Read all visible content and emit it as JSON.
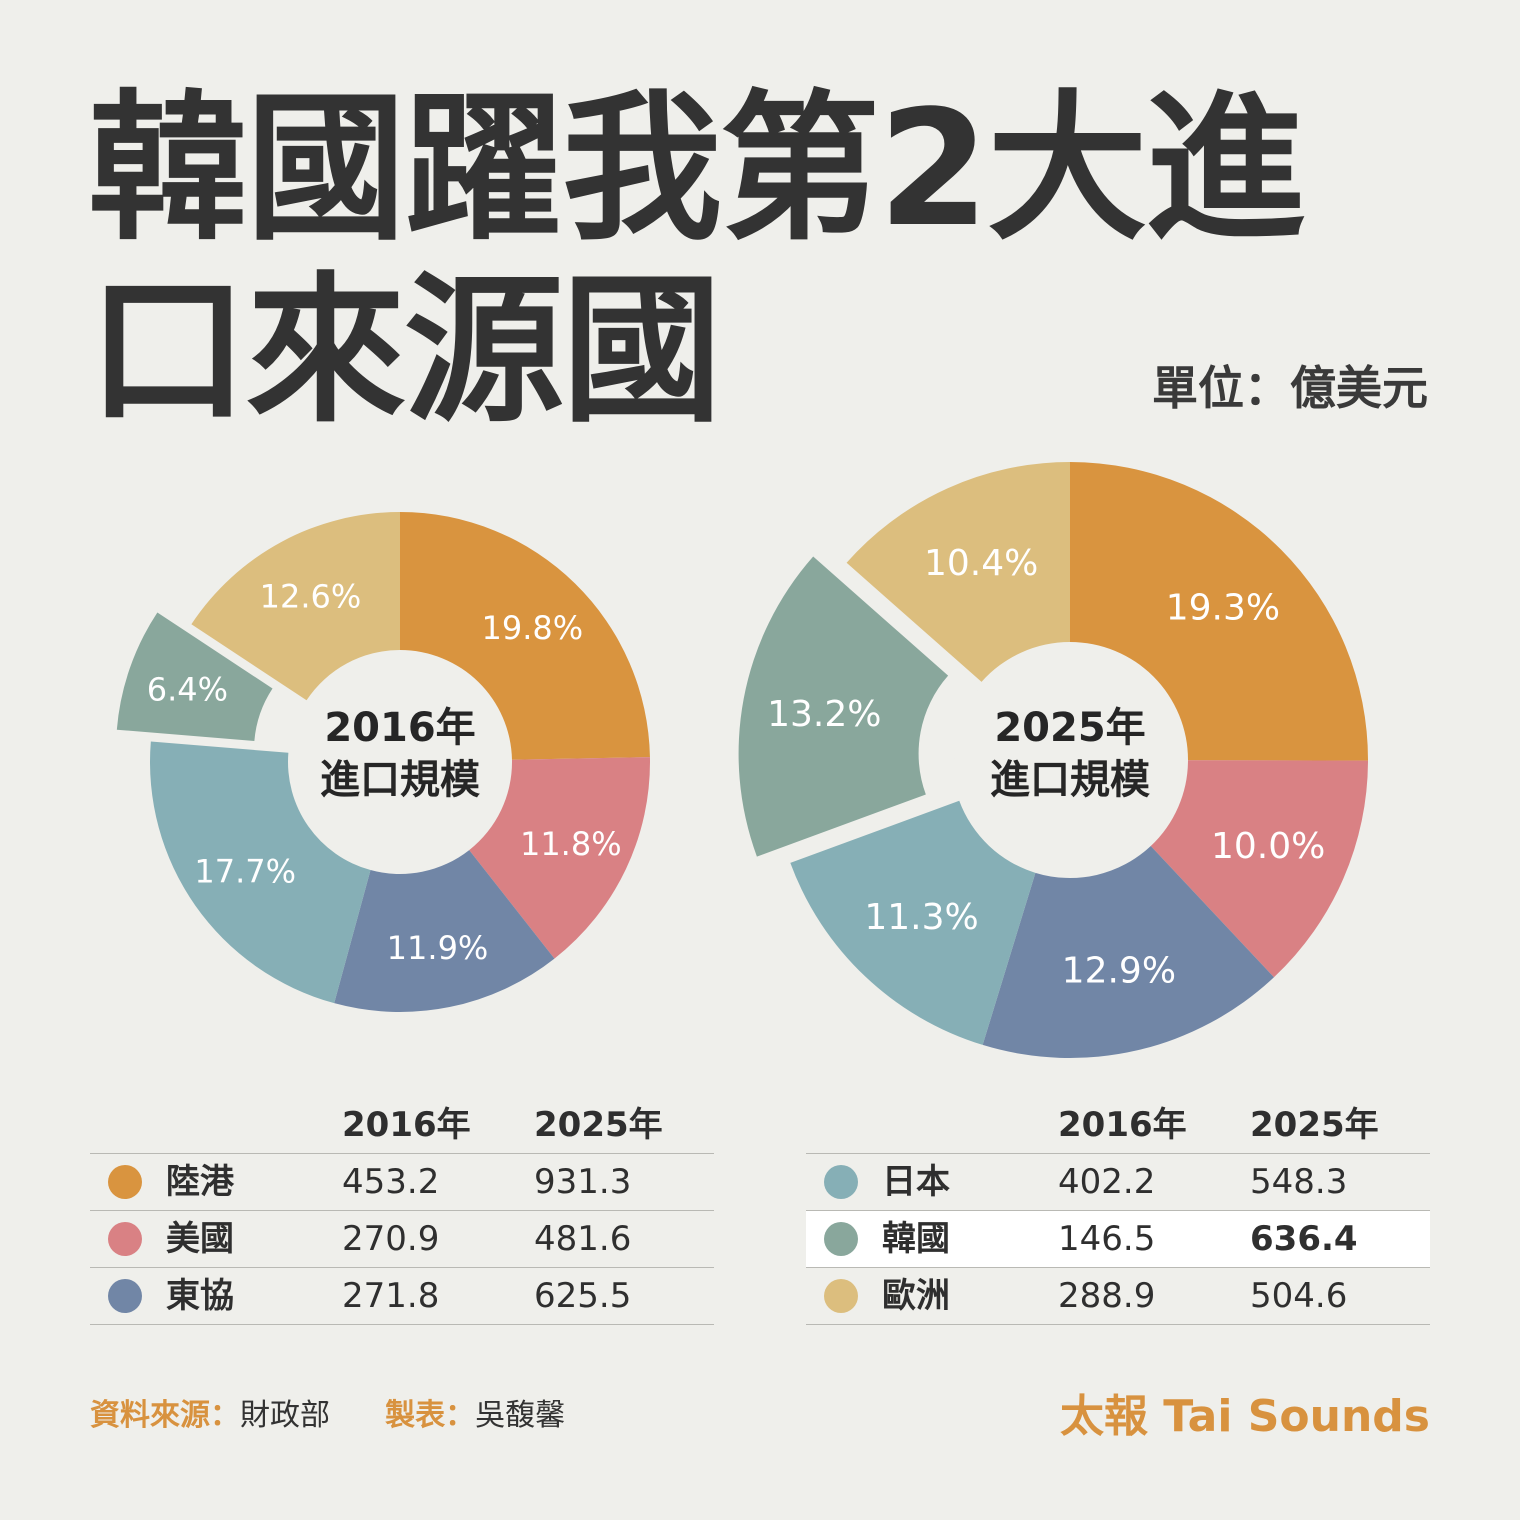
{
  "title": "韓國躍我第2大進口來源國",
  "unit": "單位：億美元",
  "colors": {
    "陸港": "#d9943f",
    "美國": "#d98184",
    "東協": "#7186a6",
    "日本": "#86afb6",
    "韓國": "#89a79c",
    "歐洲": "#dcbe7e",
    "label_text": "#ffffff",
    "highlight_row": "#ffffff",
    "accent": "#d8923f"
  },
  "chart_data": [
    {
      "type": "pie",
      "center_line1": "2016年",
      "center_line2": "進口規模",
      "categories": [
        "陸港",
        "美國",
        "東協",
        "日本",
        "韓國",
        "歐洲"
      ],
      "values": [
        19.8,
        11.8,
        11.9,
        17.7,
        6.4,
        12.6
      ],
      "labels": [
        "19.8%",
        "11.8%",
        "11.9%",
        "17.7%",
        "6.4%",
        "12.6%"
      ],
      "exploded": "韓國",
      "donut": true
    },
    {
      "type": "pie",
      "center_line1": "2025年",
      "center_line2": "進口規模",
      "categories": [
        "陸港",
        "美國",
        "東協",
        "日本",
        "韓國",
        "歐洲"
      ],
      "values": [
        19.3,
        10.0,
        12.9,
        11.3,
        13.2,
        10.4
      ],
      "labels": [
        "19.3%",
        "10.0%",
        "12.9%",
        "11.3%",
        "13.2%",
        "10.4%"
      ],
      "exploded": "韓國",
      "donut": true
    },
    {
      "type": "table",
      "columns": [
        "",
        "2016年",
        "2025年"
      ],
      "rows": [
        {
          "name": "陸港",
          "y2016": "453.2",
          "y2025": "931.3"
        },
        {
          "name": "美國",
          "y2016": "270.9",
          "y2025": "481.6"
        },
        {
          "name": "東協",
          "y2016": "271.8",
          "y2025": "625.5"
        }
      ]
    },
    {
      "type": "table",
      "columns": [
        "",
        "2016年",
        "2025年"
      ],
      "rows": [
        {
          "name": "日本",
          "y2016": "402.2",
          "y2025": "548.3"
        },
        {
          "name": "韓國",
          "y2016": "146.5",
          "y2025": "636.4",
          "highlight": true
        },
        {
          "name": "歐洲",
          "y2016": "288.9",
          "y2025": "504.6"
        }
      ]
    }
  ],
  "footer": {
    "source_key": "資料來源：",
    "source_val": "財政部",
    "maker_key": "製表：",
    "maker_val": "吳馥馨",
    "brand": "太報 Tai Sounds"
  }
}
